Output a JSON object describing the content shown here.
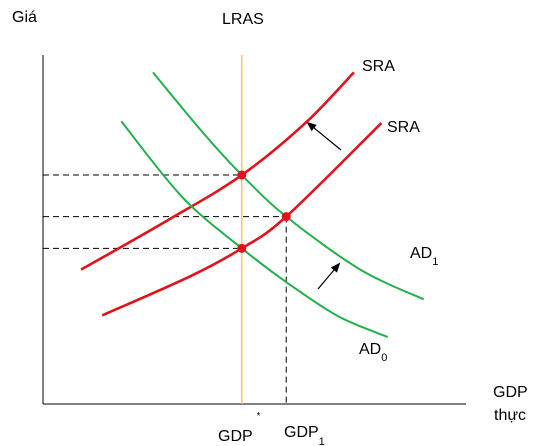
{
  "chart_data": {
    "type": "line",
    "title": "",
    "ylabel": "Giá",
    "xlabel": "GDP",
    "xlabel2": "thực",
    "grid": false,
    "legend": "none",
    "lras_label": "LRAS",
    "curve_labels": {
      "sra_upper": "SRA",
      "sra_lower": "SRA",
      "ad1_main": "AD",
      "ad1_sub": "1",
      "ad0_main": "AD",
      "ad0_sub": "0"
    },
    "x_ticks": {
      "gdp_star_main": "GDP",
      "gdp_star_sup": "*",
      "gdp1_main": "GDP",
      "gdp1_sub": "1"
    },
    "xlim": [
      0,
      100
    ],
    "ylim": [
      0,
      100
    ],
    "lras_x": 47,
    "series": [
      {
        "key": "sra_upper",
        "color": "#e0121b",
        "x": [
          9,
          30,
          47,
          62,
          73.5
        ],
        "y": [
          38.5,
          53,
          65.6,
          80.5,
          95
        ]
      },
      {
        "key": "sra_lower",
        "color": "#e0121b",
        "x": [
          14,
          35,
          47,
          57.5,
          80
        ],
        "y": [
          25.4,
          36.7,
          44.6,
          53.7,
          80.5
        ]
      },
      {
        "key": "ad1",
        "color": "#22b04a",
        "x": [
          26,
          38,
          47,
          57.5,
          75,
          90
        ],
        "y": [
          95,
          77.5,
          65.6,
          53.7,
          38.5,
          30
        ]
      },
      {
        "key": "ad0",
        "color": "#22b04a",
        "x": [
          18.5,
          33,
          47,
          58,
          70,
          81.5
        ],
        "y": [
          81,
          59.2,
          44.6,
          34.5,
          25,
          19.2
        ]
      }
    ],
    "equilibria": [
      {
        "x": 47,
        "y": 65.6
      },
      {
        "x": 57.5,
        "y": 53.7
      },
      {
        "x": 47,
        "y": 44.6
      }
    ],
    "colors": {
      "sra": "#e0121b",
      "ad": "#22b04a",
      "lras": "#f0c050",
      "axis": "#000000"
    }
  }
}
